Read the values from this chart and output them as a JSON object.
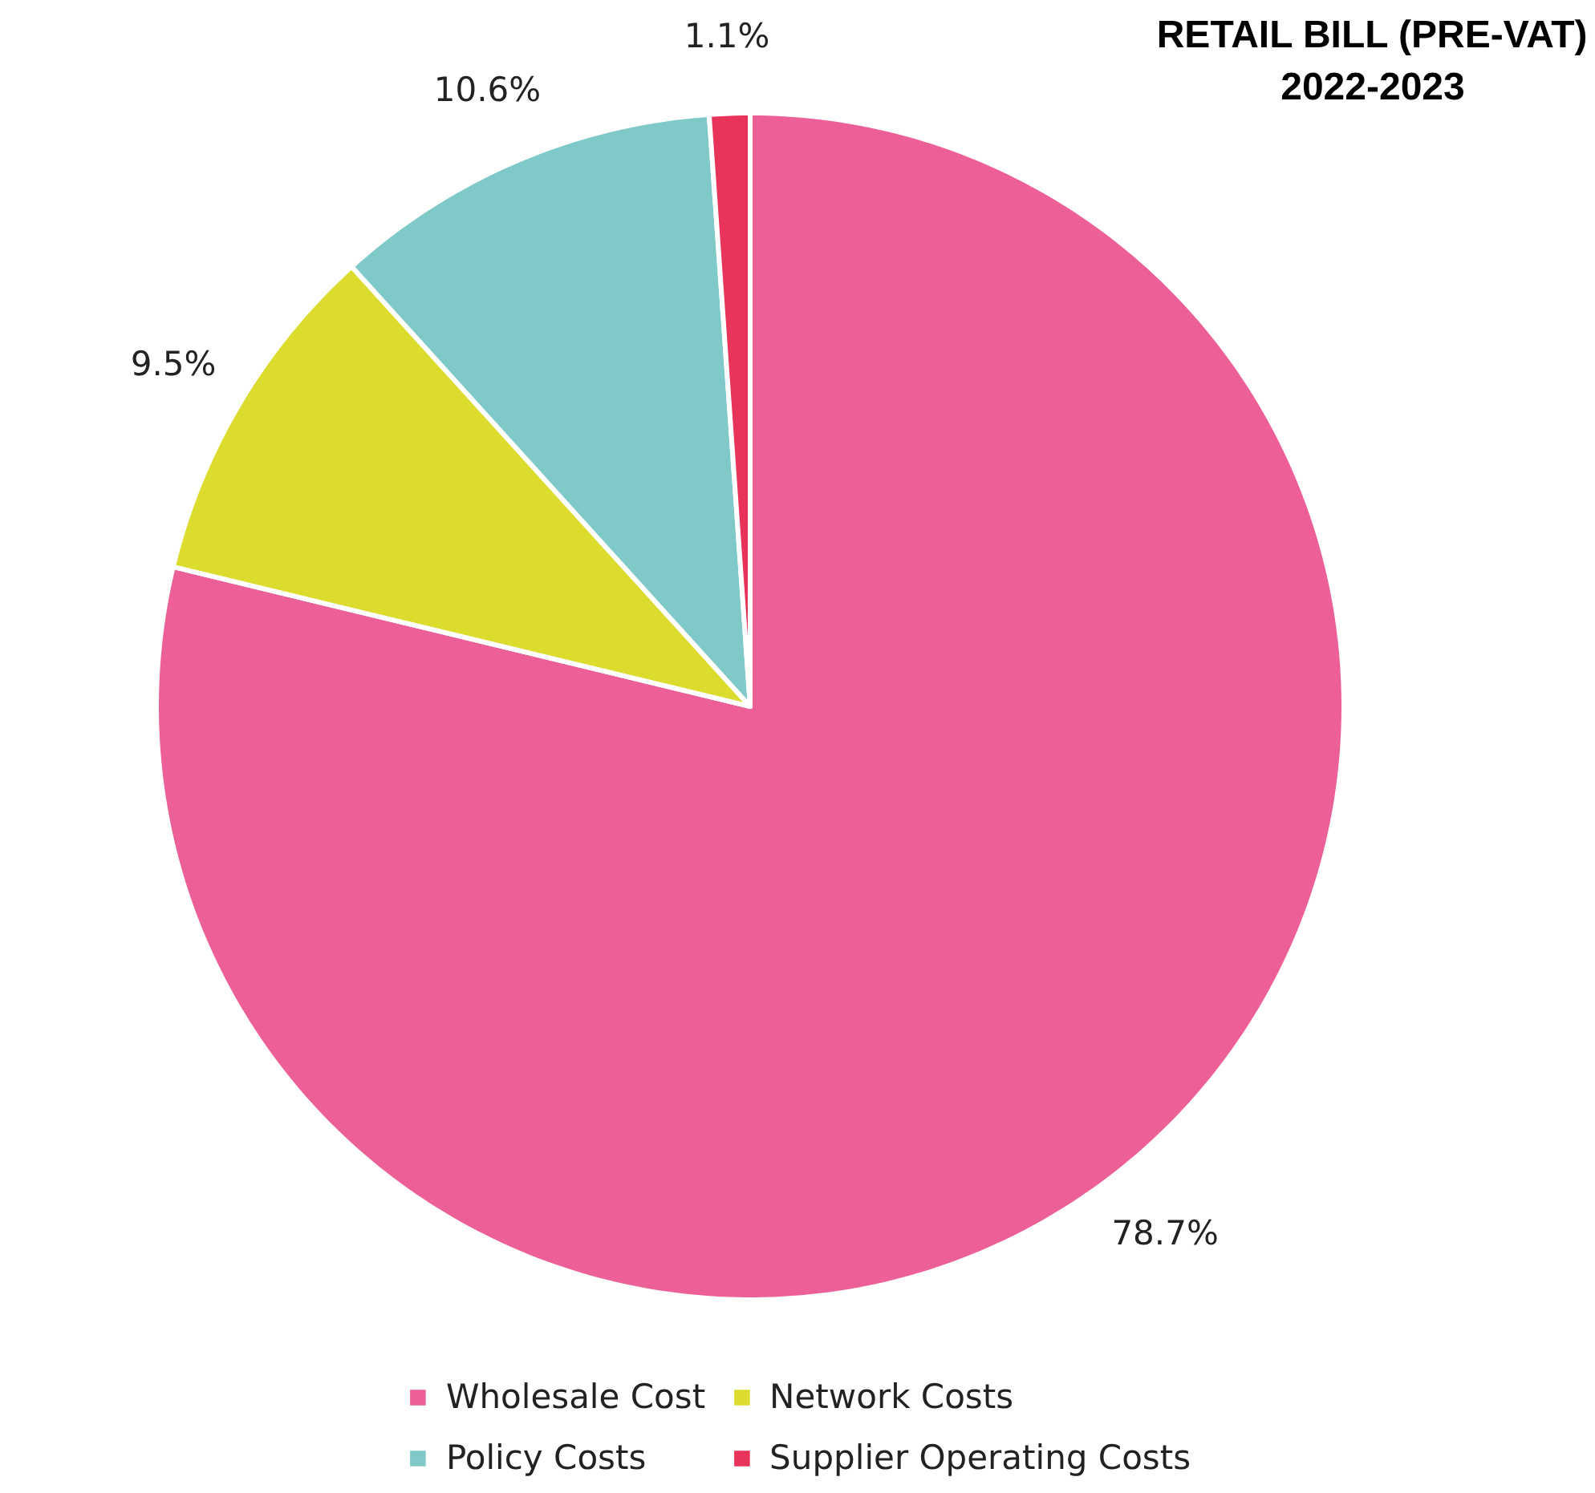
{
  "chart_data": {
    "type": "pie",
    "title": "RETAIL BILL (PRE-VAT)\n2022-2023",
    "categories": [
      "Wholesale Cost",
      "Network Costs",
      "Policy Costs",
      "Supplier Operating Costs"
    ],
    "values": [
      78.7,
      9.5,
      10.6,
      1.1
    ],
    "value_labels": [
      "78.7%",
      "9.5%",
      "10.6%",
      "1.1%"
    ],
    "colors": [
      "#ec6097",
      "#dcdc2e",
      "#80c9c9",
      "#e8345a"
    ],
    "legend": "bottom"
  }
}
